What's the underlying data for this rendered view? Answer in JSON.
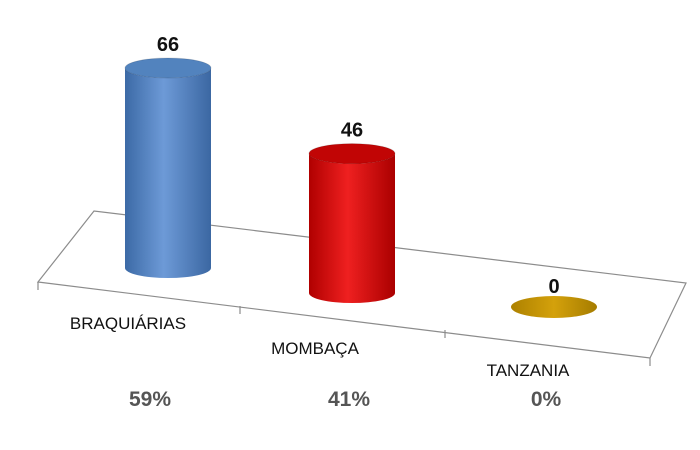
{
  "chart_data": {
    "type": "bar",
    "style": "3d-cylinder",
    "categories": [
      "BRAQUIÁRIAS",
      "MOMBAÇA",
      "TANZANIA"
    ],
    "values": [
      66,
      46,
      0
    ],
    "percentages": [
      "59%",
      "41%",
      "0%"
    ],
    "data_labels": [
      "66",
      "46",
      "0"
    ],
    "colors": [
      "#4f81bd",
      "#c00000",
      "#c09000"
    ],
    "ylim": [
      0,
      66
    ],
    "grid": false,
    "legend": "none"
  }
}
